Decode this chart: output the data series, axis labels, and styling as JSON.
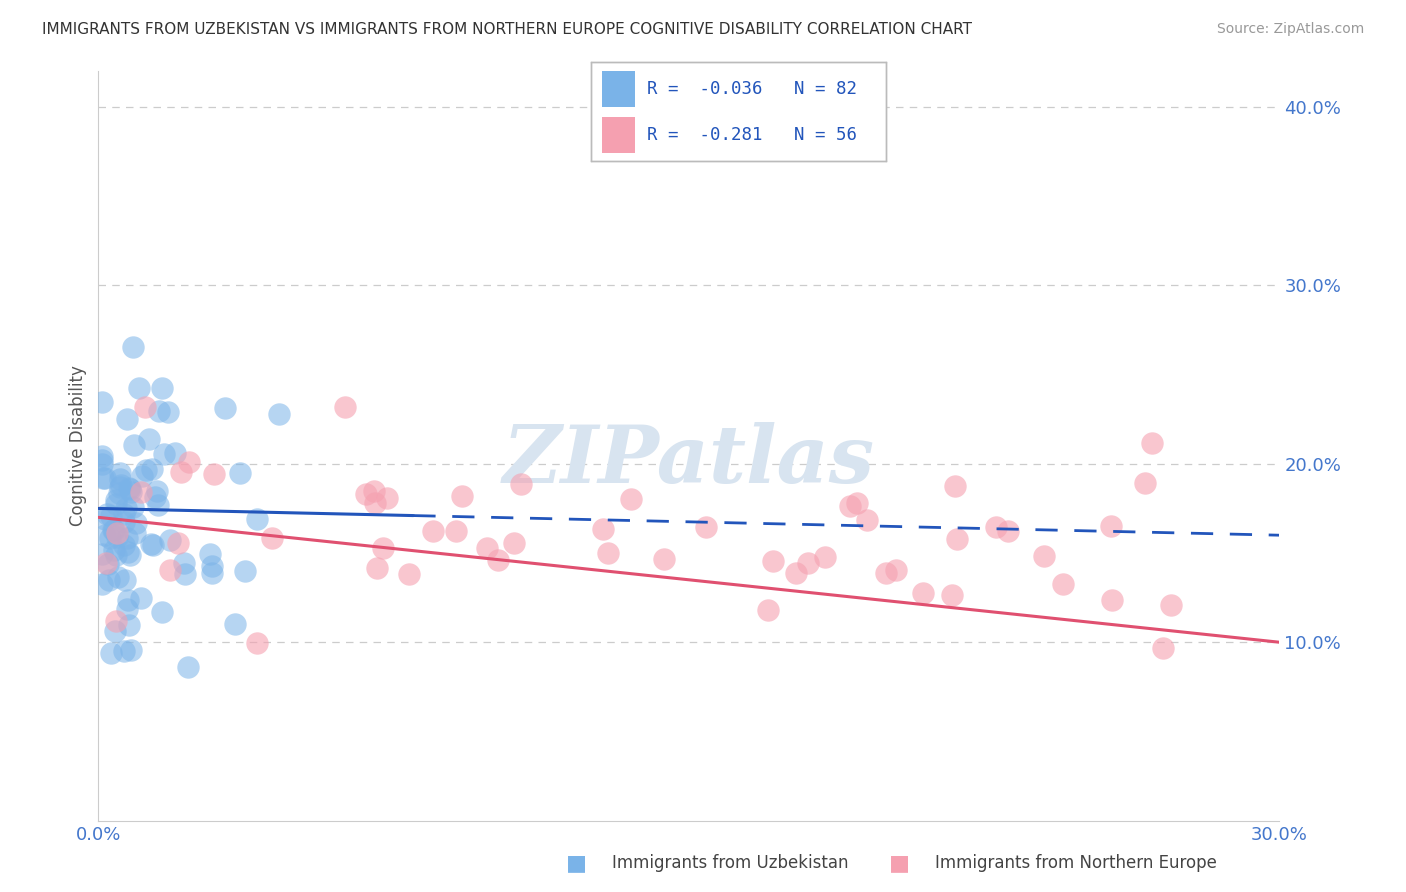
{
  "title": "IMMIGRANTS FROM UZBEKISTAN VS IMMIGRANTS FROM NORTHERN EUROPE COGNITIVE DISABILITY CORRELATION CHART",
  "source": "Source: ZipAtlas.com",
  "ylabel": "Cognitive Disability",
  "xlabel_blue": "Immigrants from Uzbekistan",
  "xlabel_pink": "Immigrants from Northern Europe",
  "xlim": [
    0.0,
    0.3
  ],
  "ylim": [
    0.0,
    0.42
  ],
  "R_blue": -0.036,
  "N_blue": 82,
  "R_pink": -0.281,
  "N_pink": 56,
  "blue_color": "#7ab3e8",
  "blue_line_color": "#2255bb",
  "pink_color": "#f5a0b0",
  "pink_line_color": "#e05070",
  "watermark": "ZIPatlas",
  "watermark_color": "#d8e4f0",
  "background_color": "#ffffff",
  "grid_color": "#cccccc",
  "tick_label_color": "#4477cc",
  "title_color": "#333333",
  "source_color": "#999999",
  "legend_text_color": "#2255bb"
}
